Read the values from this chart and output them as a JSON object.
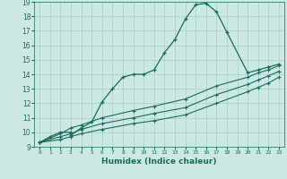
{
  "xlabel": "Humidex (Indice chaleur)",
  "bg_color": "#cce8e4",
  "line_color": "#1a6b5a",
  "grid_color": "#a8cfc8",
  "xlim": [
    -0.5,
    23.5
  ],
  "ylim": [
    9,
    19
  ],
  "xticks": [
    0,
    1,
    2,
    3,
    4,
    5,
    6,
    7,
    8,
    9,
    10,
    11,
    12,
    13,
    14,
    15,
    16,
    17,
    18,
    19,
    20,
    21,
    22,
    23
  ],
  "yticks": [
    9,
    10,
    11,
    12,
    13,
    14,
    15,
    16,
    17,
    18,
    19
  ],
  "series1_x": [
    0,
    1,
    2,
    3,
    3,
    4,
    5,
    6,
    7,
    8,
    9,
    10,
    11,
    12,
    13,
    14,
    15,
    16,
    17,
    18,
    20,
    21,
    22,
    23
  ],
  "series1_y": [
    9.3,
    9.7,
    10.0,
    10.0,
    9.8,
    10.3,
    10.7,
    12.1,
    13.0,
    13.8,
    14.0,
    14.0,
    14.3,
    15.5,
    16.4,
    17.8,
    18.8,
    18.9,
    18.3,
    16.9,
    14.1,
    14.3,
    14.5,
    14.7
  ],
  "series2_x": [
    0,
    2,
    3,
    4,
    6,
    9,
    11,
    14,
    17,
    20,
    21,
    22,
    23
  ],
  "series2_y": [
    9.3,
    9.9,
    10.3,
    10.5,
    11.0,
    11.5,
    11.8,
    12.3,
    13.2,
    13.8,
    14.1,
    14.3,
    14.6
  ],
  "series3_x": [
    0,
    2,
    3,
    4,
    6,
    9,
    11,
    14,
    17,
    20,
    21,
    22,
    23
  ],
  "series3_y": [
    9.3,
    9.7,
    9.9,
    10.2,
    10.6,
    11.0,
    11.3,
    11.7,
    12.6,
    13.3,
    13.6,
    13.9,
    14.2
  ],
  "series4_x": [
    0,
    2,
    3,
    4,
    6,
    9,
    11,
    14,
    17,
    20,
    21,
    22,
    23
  ],
  "series4_y": [
    9.3,
    9.5,
    9.7,
    9.9,
    10.2,
    10.6,
    10.8,
    11.2,
    12.0,
    12.8,
    13.1,
    13.4,
    13.8
  ]
}
